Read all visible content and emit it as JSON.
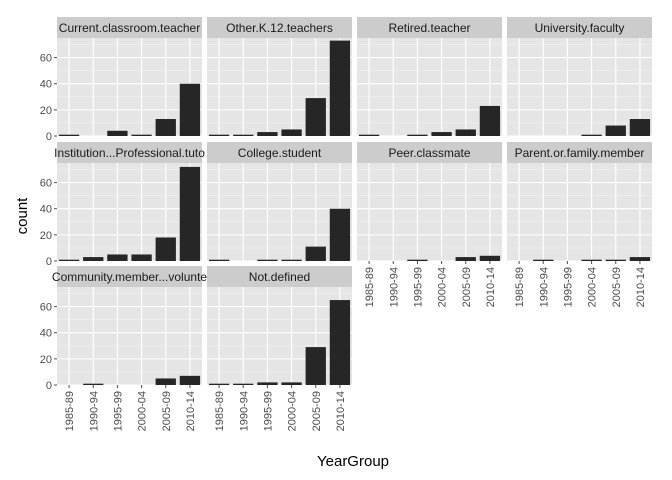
{
  "chart_data": {
    "type": "bar",
    "xlabel": "YearGroup",
    "ylabel": "count",
    "categories": [
      "1985-89",
      "1990-94",
      "1995-99",
      "2000-04",
      "2005-09",
      "2010-14"
    ],
    "y_ticks": [
      0,
      20,
      40,
      60
    ],
    "ylim": [
      0,
      75
    ],
    "grid": true,
    "colors": {
      "panel_bg": "#e5e5e5",
      "strip_bg": "#cccccc",
      "grid_major": "#ffffff",
      "grid_minor": "#f2f2f2",
      "bar": "#262626"
    },
    "panels": [
      {
        "name": "Current.classroom.teacher",
        "values": [
          1,
          0,
          4,
          1,
          13,
          40
        ]
      },
      {
        "name": "Other.K.12.teachers",
        "values": [
          1,
          1,
          3,
          5,
          29,
          73
        ]
      },
      {
        "name": "Retired.teacher",
        "values": [
          1,
          0,
          1,
          3,
          5,
          23
        ]
      },
      {
        "name": "University.faculty",
        "values": [
          0,
          0,
          0,
          1,
          8,
          13
        ]
      },
      {
        "name": "Institution...Professional.tuto",
        "values": [
          1,
          3,
          5,
          5,
          18,
          72
        ]
      },
      {
        "name": "College.student",
        "values": [
          1,
          0,
          1,
          1,
          11,
          40
        ]
      },
      {
        "name": "Peer.classmate",
        "values": [
          0,
          0,
          1,
          0,
          3,
          4
        ]
      },
      {
        "name": "Parent.or.family.member",
        "values": [
          0,
          1,
          0,
          1,
          1,
          3
        ]
      },
      {
        "name": "Community.member...volunte",
        "values": [
          0,
          1,
          0,
          0,
          5,
          7
        ]
      },
      {
        "name": "Not.defined",
        "values": [
          1,
          1,
          2,
          2,
          29,
          65
        ]
      }
    ]
  }
}
